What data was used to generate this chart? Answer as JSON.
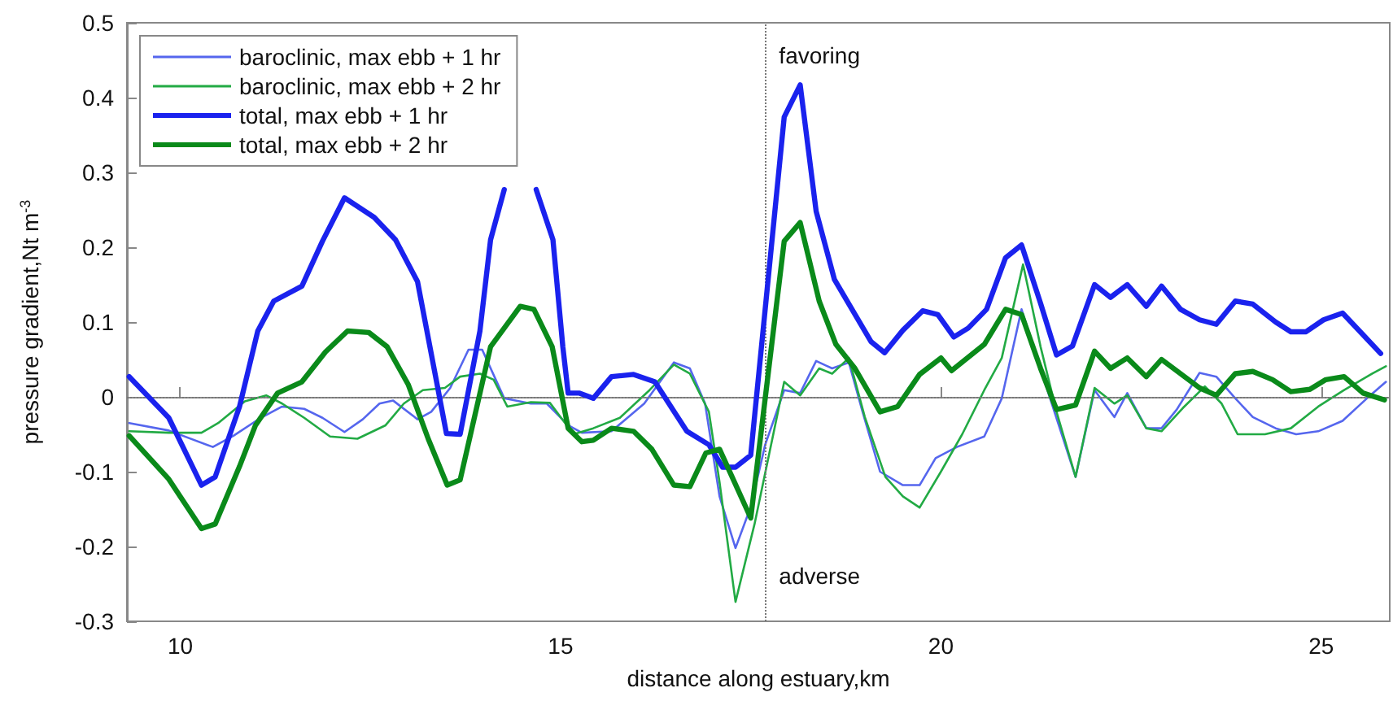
{
  "chart_data": {
    "type": "line",
    "xlabel": "distance along estuary,km",
    "ylabel": "pressure gradient,Nt m$^{-3}$",
    "xlim": [
      9.3,
      25.9
    ],
    "xticks": [
      10,
      15,
      20,
      25
    ],
    "ylim": [
      -0.3,
      0.5
    ],
    "yticks": [
      -0.3,
      -0.2,
      -0.1,
      0,
      0.1,
      0.2,
      0.3,
      0.4,
      0.5
    ],
    "grid": false,
    "legend": "top left",
    "marker": "none",
    "line_style": "solid",
    "ref_lines": [
      {
        "axis": "y",
        "value": 0,
        "line_style": "dotted",
        "color": "#777777"
      },
      {
        "axis": "x",
        "value": 17.7,
        "line_style": "dotted",
        "color": "#777777"
      }
    ],
    "annotations": [
      "favoring",
      "adverse"
    ],
    "series": [
      {
        "name": "baroclinic, max ebb + 1 hr",
        "color": "#5566ee",
        "x": [
          9.33,
          9.85,
          10.43,
          10.7,
          11.06,
          11.34,
          11.63,
          11.87,
          12.16,
          12.4,
          12.62,
          12.8,
          13.12,
          13.3,
          13.55,
          13.79,
          13.97,
          14.26,
          14.61,
          14.82,
          15.1,
          15.28,
          15.67,
          16.1,
          16.49,
          16.7,
          16.9,
          17.09,
          17.3,
          17.5,
          17.69,
          17.94,
          18.15,
          18.36,
          18.57,
          18.79,
          18.97,
          19.2,
          19.5,
          19.72,
          19.93,
          20.21,
          20.57,
          20.8,
          21.06,
          21.25,
          21.77,
          22.02,
          22.28,
          22.45,
          22.7,
          22.9,
          23.1,
          23.4,
          23.62,
          23.87,
          24.1,
          24.4,
          24.67,
          24.96,
          25.28,
          25.6,
          25.85
        ],
        "values": [
          -0.035,
          -0.045,
          -0.067,
          -0.052,
          -0.028,
          -0.013,
          -0.016,
          -0.028,
          -0.047,
          -0.03,
          -0.009,
          -0.005,
          -0.03,
          -0.02,
          0.012,
          0.063,
          0.063,
          -0.002,
          -0.009,
          -0.009,
          -0.038,
          -0.048,
          -0.046,
          -0.009,
          0.046,
          0.038,
          -0.009,
          -0.133,
          -0.202,
          -0.147,
          -0.064,
          0.009,
          0.005,
          0.048,
          0.038,
          0.046,
          -0.02,
          -0.1,
          -0.118,
          -0.118,
          -0.082,
          -0.067,
          -0.053,
          -0.002,
          0.117,
          0.056,
          -0.107,
          0.009,
          -0.027,
          0.005,
          -0.042,
          -0.042,
          -0.017,
          0.032,
          0.027,
          -0.002,
          -0.027,
          -0.042,
          -0.05,
          -0.046,
          -0.032,
          -0.002,
          0.02
        ]
      },
      {
        "name": "baroclinic, max ebb + 2 hr",
        "color": "#22aa44",
        "x": [
          9.33,
          9.85,
          10.28,
          10.5,
          10.85,
          11.13,
          11.34,
          11.63,
          11.97,
          12.33,
          12.7,
          12.94,
          13.19,
          13.48,
          13.68,
          13.94,
          14.12,
          14.3,
          14.61,
          14.86,
          15.17,
          15.43,
          15.78,
          16.17,
          16.49,
          16.7,
          16.95,
          17.09,
          17.3,
          17.55,
          17.94,
          18.15,
          18.4,
          18.57,
          18.79,
          19.0,
          19.27,
          19.5,
          19.72,
          20.0,
          20.28,
          20.57,
          20.8,
          21.08,
          21.31,
          21.52,
          21.77,
          22.02,
          22.28,
          22.45,
          22.7,
          22.9,
          23.18,
          23.47,
          23.69,
          23.9,
          24.26,
          24.6,
          24.96,
          25.3,
          25.67,
          25.85
        ],
        "values": [
          -0.046,
          -0.048,
          -0.048,
          -0.035,
          -0.006,
          0.002,
          -0.009,
          -0.028,
          -0.053,
          -0.056,
          -0.038,
          -0.009,
          0.009,
          0.012,
          0.027,
          0.031,
          0.023,
          -0.013,
          -0.007,
          -0.008,
          -0.05,
          -0.042,
          -0.028,
          0.009,
          0.043,
          0.031,
          -0.02,
          -0.114,
          -0.274,
          -0.17,
          0.02,
          0.002,
          0.038,
          0.031,
          0.052,
          -0.027,
          -0.107,
          -0.133,
          -0.148,
          -0.1,
          -0.05,
          0.009,
          0.052,
          0.177,
          0.067,
          -0.02,
          -0.107,
          0.012,
          -0.009,
          0.002,
          -0.042,
          -0.046,
          -0.015,
          0.014,
          -0.009,
          -0.05,
          -0.05,
          -0.042,
          -0.013,
          0.009,
          0.031,
          0.041
        ]
      },
      {
        "name": "total, max ebb + 1 hr",
        "color": "#1a22ee",
        "x": [
          9.33,
          9.85,
          10.28,
          10.46,
          10.78,
          11.02,
          11.23,
          11.6,
          11.87,
          12.16,
          12.55,
          12.83,
          13.12,
          13.5,
          13.68,
          13.94,
          14.08,
          14.26,
          14.47,
          14.68,
          14.9,
          15.03,
          15.1,
          15.25,
          15.43,
          15.67,
          15.96,
          16.24,
          16.66,
          16.95,
          17.13,
          17.3,
          17.5,
          17.94,
          18.15,
          18.36,
          18.6,
          19.08,
          19.26,
          19.5,
          19.76,
          19.96,
          20.17,
          20.36,
          20.6,
          20.85,
          21.06,
          21.31,
          21.52,
          21.73,
          22.02,
          22.23,
          22.45,
          22.7,
          22.9,
          23.15,
          23.4,
          23.62,
          23.87,
          24.1,
          24.4,
          24.6,
          24.8,
          25.03,
          25.28,
          25.53,
          25.78
        ],
        "values": [
          0.027,
          -0.028,
          -0.118,
          -0.107,
          -0.013,
          0.088,
          0.128,
          0.148,
          0.208,
          0.266,
          0.24,
          0.21,
          0.154,
          -0.049,
          -0.05,
          0.088,
          0.21,
          0.277,
          null,
          0.277,
          0.21,
          0.067,
          0.005,
          0.005,
          -0.002,
          0.027,
          0.03,
          0.02,
          -0.046,
          -0.064,
          -0.094,
          -0.094,
          -0.078,
          0.374,
          0.417,
          0.248,
          0.157,
          0.074,
          0.059,
          0.089,
          0.115,
          0.11,
          0.08,
          0.092,
          0.117,
          0.186,
          0.203,
          0.125,
          0.056,
          0.068,
          0.15,
          0.133,
          0.15,
          0.121,
          0.148,
          0.117,
          0.103,
          0.097,
          0.128,
          0.124,
          0.1,
          0.087,
          0.087,
          0.103,
          0.112,
          0.085,
          0.058
        ]
      },
      {
        "name": "total, max ebb + 2 hr",
        "color": "#0a8a1a",
        "x": [
          9.33,
          9.85,
          10.28,
          10.46,
          10.78,
          10.99,
          11.28,
          11.6,
          11.91,
          12.2,
          12.48,
          12.72,
          13.0,
          13.26,
          13.51,
          13.68,
          14.08,
          14.47,
          14.65,
          14.89,
          15.1,
          15.28,
          15.43,
          15.67,
          15.96,
          16.2,
          16.49,
          16.7,
          16.91,
          17.09,
          17.5,
          17.94,
          18.15,
          18.4,
          18.62,
          18.87,
          19.2,
          19.43,
          19.72,
          20.0,
          20.14,
          20.57,
          20.85,
          21.06,
          21.31,
          21.52,
          21.77,
          22.02,
          22.23,
          22.45,
          22.7,
          22.9,
          23.15,
          23.4,
          23.62,
          23.87,
          24.1,
          24.36,
          24.6,
          24.85,
          25.06,
          25.3,
          25.55,
          25.83
        ],
        "values": [
          -0.052,
          -0.11,
          -0.176,
          -0.17,
          -0.093,
          -0.038,
          0.005,
          0.02,
          0.06,
          0.088,
          0.086,
          0.067,
          0.016,
          -0.056,
          -0.118,
          -0.111,
          0.067,
          0.121,
          0.117,
          0.067,
          -0.042,
          -0.06,
          -0.058,
          -0.042,
          -0.046,
          -0.07,
          -0.118,
          -0.12,
          -0.075,
          -0.07,
          -0.162,
          0.208,
          0.233,
          0.128,
          0.07,
          0.038,
          -0.02,
          -0.013,
          0.03,
          0.052,
          0.035,
          0.07,
          0.117,
          0.11,
          0.038,
          -0.017,
          -0.011,
          0.061,
          0.038,
          0.052,
          0.027,
          0.05,
          0.031,
          0.012,
          0.002,
          0.031,
          0.034,
          0.023,
          0.007,
          0.01,
          0.023,
          0.027,
          0.005,
          -0.004
        ]
      }
    ]
  }
}
